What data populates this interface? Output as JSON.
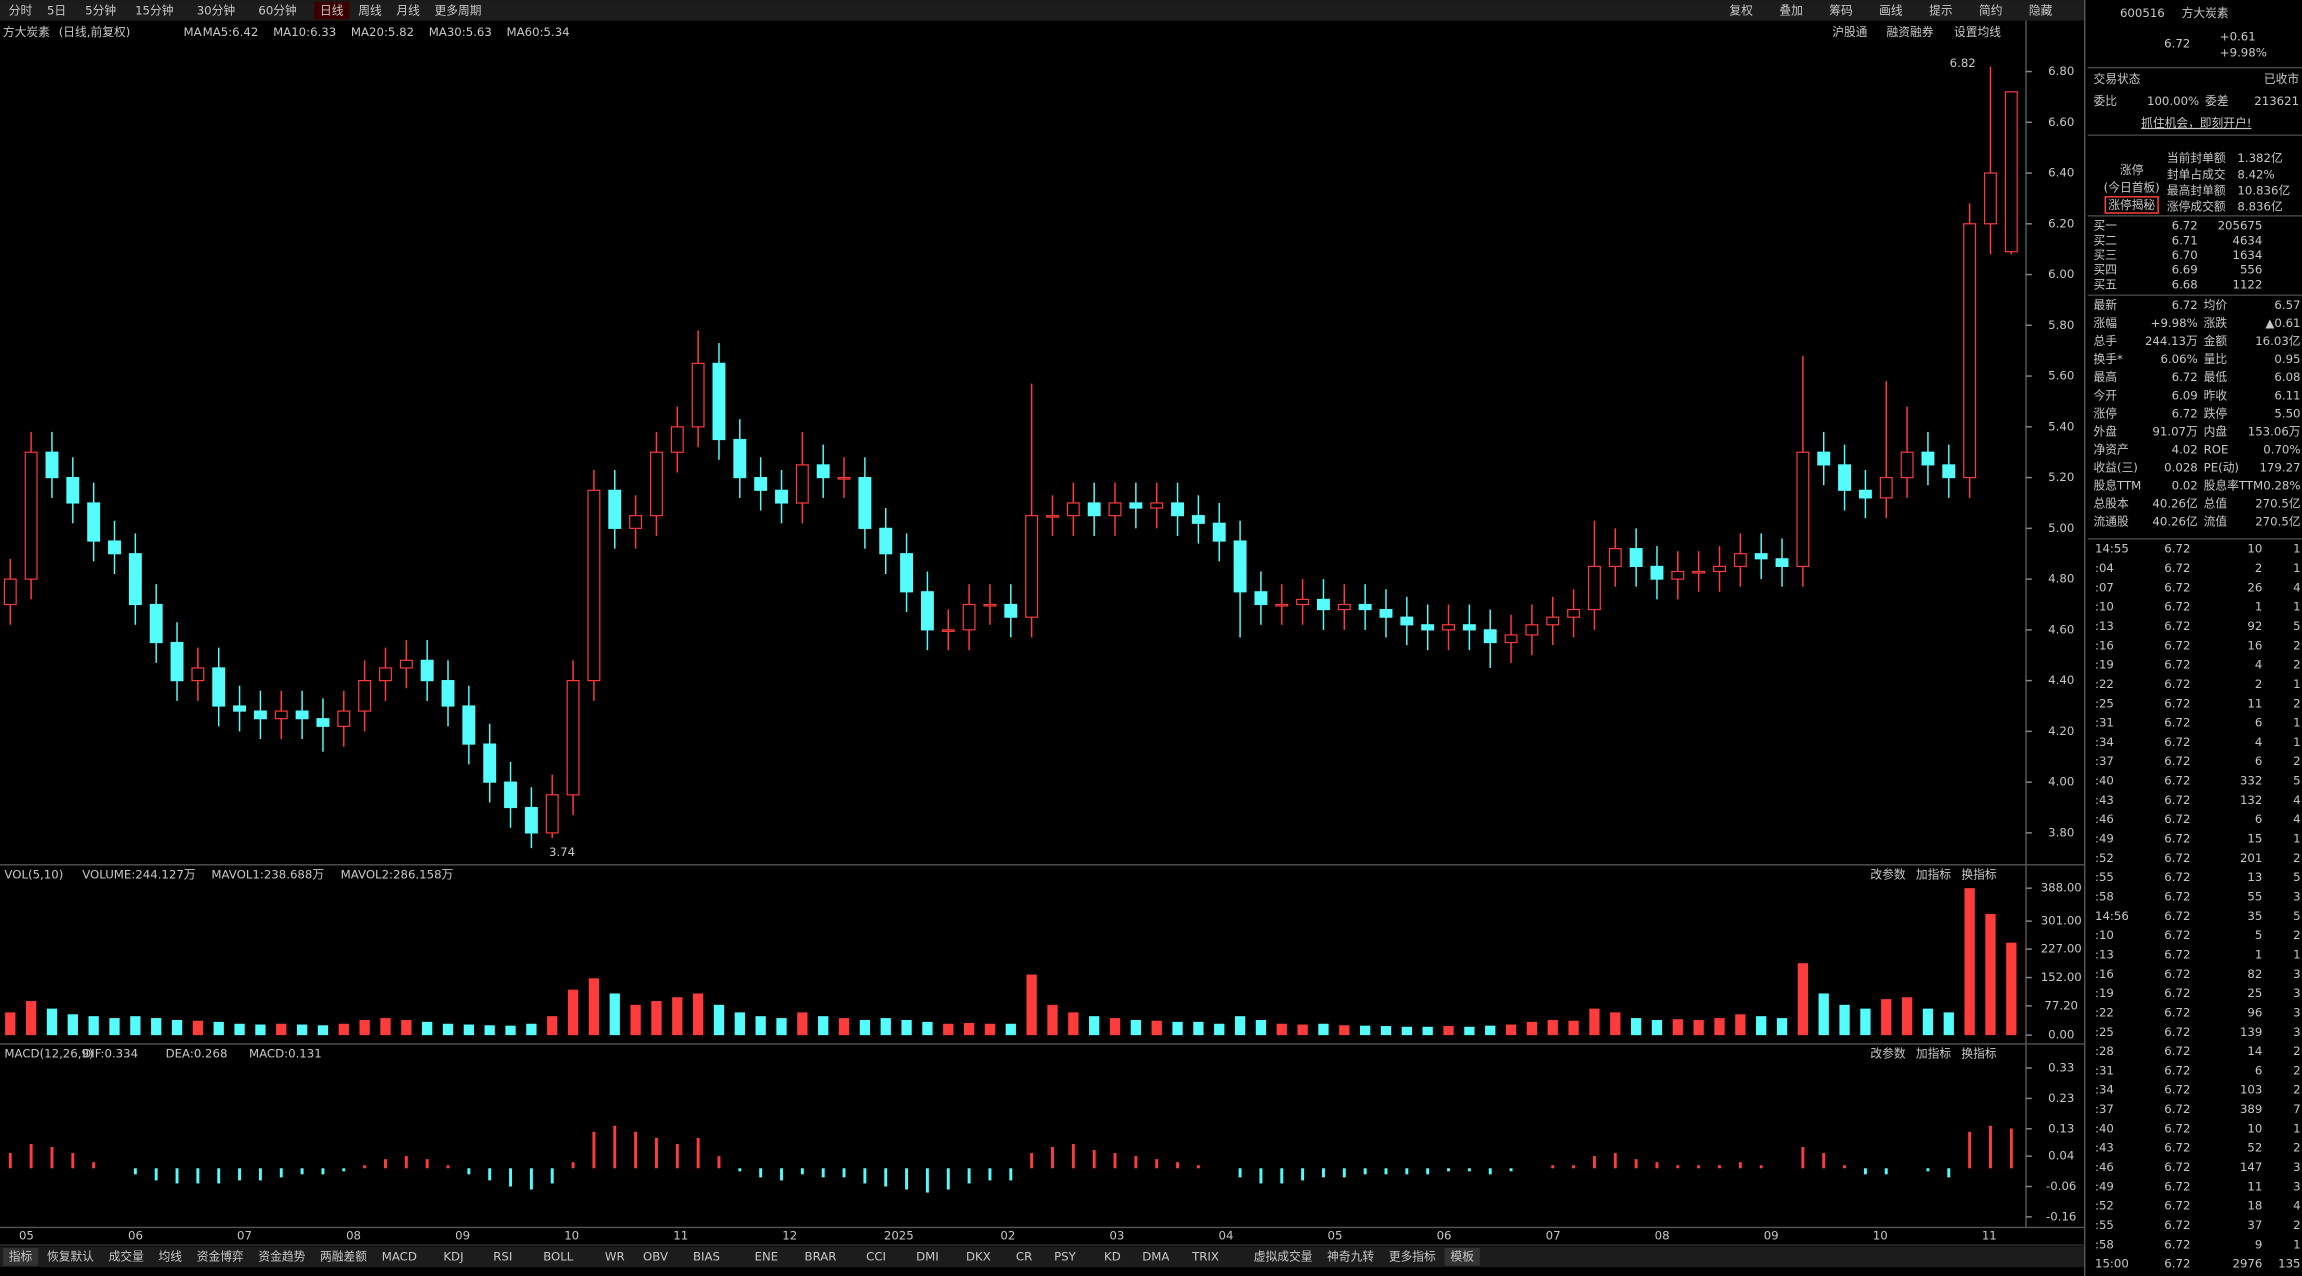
{
  "toolbar": {
    "periods": [
      "分时",
      "5日",
      "5分钟",
      "15分钟",
      "30分钟",
      "60分钟",
      "日线",
      "周线",
      "月线",
      "更多周期"
    ],
    "tools": [
      "复权",
      "叠加",
      "筹码",
      "画线",
      "提示",
      "简约",
      "隐藏"
    ]
  },
  "header": {
    "stock": "方大炭素",
    "mode": "(日线,前复权)",
    "ma_title": "MA",
    "ma": [
      {
        "label": "MA5:6.42",
        "color": "#ffffff"
      },
      {
        "label": "MA10:6.33",
        "color": "#ffff00"
      },
      {
        "label": "MA20:5.82",
        "color": "#ff33ff"
      },
      {
        "label": "MA30:5.63",
        "color": "#00ff00"
      },
      {
        "label": "MA60:5.34",
        "color": "#c0c0c0"
      }
    ],
    "links": [
      "沪股通",
      "融资融券",
      "设置均线"
    ]
  },
  "chart_data": {
    "type": "candlestick",
    "up_color": "#ff3c3c",
    "down_color": "#54fcfc",
    "ylim": [
      3.68,
      6.85
    ],
    "yticks": [
      {
        "value": 3.8,
        "label": "3.80"
      },
      {
        "value": 4.0,
        "label": "4.00"
      },
      {
        "value": 4.2,
        "label": "4.20"
      },
      {
        "value": 4.4,
        "label": "4.40"
      },
      {
        "value": 4.6,
        "label": "4.60"
      },
      {
        "value": 4.8,
        "label": "4.80"
      },
      {
        "value": 5.0,
        "label": "5.00"
      },
      {
        "value": 5.2,
        "label": "5.20"
      },
      {
        "value": 5.4,
        "label": "5.40"
      },
      {
        "value": 5.6,
        "label": "5.60"
      },
      {
        "value": 5.8,
        "label": "5.80"
      },
      {
        "value": 6.0,
        "label": "6.00"
      },
      {
        "value": 6.2,
        "label": "6.20"
      },
      {
        "value": 6.4,
        "label": "6.40"
      },
      {
        "value": 6.6,
        "label": "6.60"
      },
      {
        "value": 6.8,
        "label": "6.80"
      }
    ],
    "high_note": 6.82,
    "low_note": 3.74,
    "months": [
      "05",
      "06",
      "07",
      "08",
      "09",
      "10",
      "11",
      "12",
      "2025",
      "02",
      "03",
      "04",
      "05",
      "06",
      "07",
      "08",
      "09",
      "10",
      "11"
    ],
    "candles": [
      [
        4.7,
        4.88,
        4.62,
        4.8
      ],
      [
        4.8,
        5.38,
        4.72,
        5.3
      ],
      [
        5.3,
        5.38,
        5.12,
        5.2
      ],
      [
        5.2,
        5.28,
        5.02,
        5.1
      ],
      [
        5.1,
        5.18,
        4.87,
        4.95
      ],
      [
        4.95,
        5.03,
        4.82,
        4.9
      ],
      [
        4.9,
        4.98,
        4.62,
        4.7
      ],
      [
        4.7,
        4.78,
        4.47,
        4.55
      ],
      [
        4.55,
        4.63,
        4.32,
        4.4
      ],
      [
        4.4,
        4.53,
        4.32,
        4.45
      ],
      [
        4.45,
        4.53,
        4.22,
        4.3
      ],
      [
        4.3,
        4.38,
        4.2,
        4.28
      ],
      [
        4.28,
        4.36,
        4.17,
        4.25
      ],
      [
        4.25,
        4.36,
        4.17,
        4.28
      ],
      [
        4.28,
        4.36,
        4.17,
        4.25
      ],
      [
        4.25,
        4.33,
        4.12,
        4.22
      ],
      [
        4.22,
        4.36,
        4.14,
        4.28
      ],
      [
        4.28,
        4.48,
        4.2,
        4.4
      ],
      [
        4.4,
        4.53,
        4.32,
        4.45
      ],
      [
        4.45,
        4.56,
        4.37,
        4.48
      ],
      [
        4.48,
        4.56,
        4.32,
        4.4
      ],
      [
        4.4,
        4.48,
        4.22,
        4.3
      ],
      [
        4.3,
        4.38,
        4.07,
        4.15
      ],
      [
        4.15,
        4.23,
        3.92,
        4.0
      ],
      [
        4.0,
        4.08,
        3.82,
        3.9
      ],
      [
        3.9,
        3.98,
        3.74,
        3.8
      ],
      [
        3.8,
        4.03,
        3.78,
        3.95
      ],
      [
        3.95,
        4.48,
        3.87,
        4.4
      ],
      [
        4.4,
        5.23,
        4.32,
        5.15
      ],
      [
        5.15,
        5.23,
        4.92,
        5.0
      ],
      [
        5.0,
        5.13,
        4.92,
        5.05
      ],
      [
        5.05,
        5.38,
        4.97,
        5.3
      ],
      [
        5.3,
        5.48,
        5.22,
        5.4
      ],
      [
        5.4,
        5.78,
        5.32,
        5.65
      ],
      [
        5.65,
        5.73,
        5.27,
        5.35
      ],
      [
        5.35,
        5.43,
        5.12,
        5.2
      ],
      [
        5.2,
        5.28,
        5.07,
        5.15
      ],
      [
        5.15,
        5.23,
        5.02,
        5.1
      ],
      [
        5.1,
        5.38,
        5.02,
        5.25
      ],
      [
        5.25,
        5.33,
        5.12,
        5.2
      ],
      [
        5.2,
        5.28,
        5.12,
        5.2
      ],
      [
        5.2,
        5.28,
        4.92,
        5.0
      ],
      [
        5.0,
        5.08,
        4.82,
        4.9
      ],
      [
        4.9,
        4.98,
        4.67,
        4.75
      ],
      [
        4.75,
        4.83,
        4.52,
        4.6
      ],
      [
        4.6,
        4.68,
        4.52,
        4.6
      ],
      [
        4.6,
        4.78,
        4.52,
        4.7
      ],
      [
        4.7,
        4.78,
        4.62,
        4.7
      ],
      [
        4.7,
        4.78,
        4.57,
        4.65
      ],
      [
        4.65,
        5.57,
        4.57,
        5.05
      ],
      [
        5.05,
        5.13,
        4.97,
        5.05
      ],
      [
        5.05,
        5.18,
        4.97,
        5.1
      ],
      [
        5.1,
        5.18,
        4.97,
        5.05
      ],
      [
        5.05,
        5.18,
        4.97,
        5.1
      ],
      [
        5.1,
        5.18,
        5.0,
        5.08
      ],
      [
        5.08,
        5.18,
        5.0,
        5.1
      ],
      [
        5.1,
        5.18,
        4.97,
        5.05
      ],
      [
        5.05,
        5.13,
        4.94,
        5.02
      ],
      [
        5.02,
        5.1,
        4.87,
        4.95
      ],
      [
        4.95,
        5.03,
        4.57,
        4.75
      ],
      [
        4.75,
        4.83,
        4.62,
        4.7
      ],
      [
        4.7,
        4.78,
        4.62,
        4.7
      ],
      [
        4.7,
        4.8,
        4.62,
        4.72
      ],
      [
        4.72,
        4.8,
        4.6,
        4.68
      ],
      [
        4.68,
        4.78,
        4.6,
        4.7
      ],
      [
        4.7,
        4.78,
        4.6,
        4.68
      ],
      [
        4.68,
        4.76,
        4.57,
        4.65
      ],
      [
        4.65,
        4.73,
        4.54,
        4.62
      ],
      [
        4.62,
        4.7,
        4.52,
        4.6
      ],
      [
        4.6,
        4.7,
        4.52,
        4.62
      ],
      [
        4.62,
        4.7,
        4.52,
        4.6
      ],
      [
        4.6,
        4.68,
        4.45,
        4.55
      ],
      [
        4.55,
        4.66,
        4.47,
        4.58
      ],
      [
        4.58,
        4.7,
        4.5,
        4.62
      ],
      [
        4.62,
        4.73,
        4.54,
        4.65
      ],
      [
        4.65,
        4.76,
        4.57,
        4.68
      ],
      [
        4.68,
        5.03,
        4.6,
        4.85
      ],
      [
        4.85,
        5.0,
        4.77,
        4.92
      ],
      [
        4.92,
        5.0,
        4.77,
        4.85
      ],
      [
        4.85,
        4.93,
        4.72,
        4.8
      ],
      [
        4.8,
        4.91,
        4.72,
        4.83
      ],
      [
        4.83,
        4.91,
        4.75,
        4.83
      ],
      [
        4.83,
        4.93,
        4.75,
        4.85
      ],
      [
        4.85,
        4.98,
        4.77,
        4.9
      ],
      [
        4.9,
        4.98,
        4.8,
        4.88
      ],
      [
        4.88,
        4.96,
        4.77,
        4.85
      ],
      [
        4.85,
        5.68,
        4.77,
        5.3
      ],
      [
        5.3,
        5.38,
        5.17,
        5.25
      ],
      [
        5.25,
        5.33,
        5.07,
        5.15
      ],
      [
        5.15,
        5.23,
        5.04,
        5.12
      ],
      [
        5.12,
        5.58,
        5.04,
        5.2
      ],
      [
        5.2,
        5.48,
        5.12,
        5.3
      ],
      [
        5.3,
        5.38,
        5.17,
        5.25
      ],
      [
        5.25,
        5.33,
        5.12,
        5.2
      ],
      [
        5.2,
        6.28,
        5.12,
        6.2
      ],
      [
        6.2,
        6.82,
        6.08,
        6.4
      ],
      [
        6.09,
        6.72,
        6.08,
        6.72
      ]
    ],
    "volume": {
      "title": "VOL(5,10)",
      "readouts": [
        "VOLUME:244.127万",
        "MAVOL1:238.688万",
        "MAVOL2:286.158万"
      ],
      "ylim": [
        0,
        407
      ],
      "yticks": [
        {
          "value": 0,
          "label": "0.00"
        },
        {
          "value": 77.2,
          "label": "77.20"
        },
        {
          "value": 152,
          "label": "152.00"
        },
        {
          "value": 227,
          "label": "227.00"
        },
        {
          "value": 301,
          "label": "301.00"
        },
        {
          "value": 388,
          "label": "388.00"
        }
      ],
      "values": [
        60,
        90,
        70,
        55,
        50,
        45,
        50,
        45,
        40,
        38,
        35,
        30,
        28,
        30,
        28,
        26,
        30,
        40,
        45,
        40,
        35,
        30,
        28,
        26,
        25,
        30,
        50,
        120,
        150,
        110,
        80,
        90,
        100,
        110,
        80,
        60,
        50,
        45,
        60,
        50,
        45,
        40,
        45,
        40,
        35,
        30,
        32,
        30,
        30,
        160,
        80,
        60,
        50,
        45,
        40,
        38,
        35,
        35,
        30,
        50,
        40,
        30,
        28,
        30,
        26,
        25,
        24,
        22,
        22,
        24,
        22,
        25,
        28,
        35,
        40,
        38,
        70,
        60,
        45,
        40,
        42,
        40,
        45,
        55,
        50,
        45,
        190,
        110,
        80,
        70,
        95,
        100,
        70,
        60,
        388,
        320,
        244.127
      ]
    },
    "macd": {
      "title": "MACD(12,26,9)",
      "readouts": [
        "DIF:0.334",
        "DEA:0.268",
        "MACD:0.131"
      ],
      "ylim": [
        -0.19,
        0.39
      ],
      "yticks": [
        -0.16,
        -0.06,
        0.04,
        0.13,
        0.23,
        0.33
      ],
      "values": [
        0.05,
        0.08,
        0.07,
        0.05,
        0.02,
        0,
        -0.02,
        -0.04,
        -0.05,
        -0.05,
        -0.05,
        -0.04,
        -0.04,
        -0.03,
        -0.02,
        -0.02,
        -0.01,
        0.01,
        0.03,
        0.04,
        0.03,
        0.01,
        -0.02,
        -0.04,
        -0.06,
        -0.07,
        -0.05,
        0.02,
        0.12,
        0.14,
        0.12,
        0.1,
        0.08,
        0.1,
        0.04,
        -0.01,
        -0.03,
        -0.04,
        -0.02,
        -0.03,
        -0.03,
        -0.05,
        -0.06,
        -0.07,
        -0.08,
        -0.07,
        -0.05,
        -0.04,
        -0.04,
        0.05,
        0.07,
        0.08,
        0.06,
        0.05,
        0.04,
        0.03,
        0.02,
        0.01,
        0,
        -0.03,
        -0.05,
        -0.05,
        -0.04,
        -0.03,
        -0.03,
        -0.02,
        -0.02,
        -0.02,
        -0.02,
        -0.01,
        -0.01,
        -0.02,
        -0.01,
        0,
        0.01,
        0.01,
        0.04,
        0.05,
        0.03,
        0.02,
        0.01,
        0.01,
        0.01,
        0.02,
        0.01,
        0,
        0.07,
        0.05,
        0.01,
        -0.02,
        -0.02,
        0,
        -0.01,
        -0.03,
        0.12,
        0.14,
        0.131
      ]
    }
  },
  "panel_buttons": [
    "改参数",
    "加指标",
    "换指标"
  ],
  "bottom_tabs": [
    "指标",
    "恢复默认",
    "成交量",
    "均线",
    "资金博弈",
    "资金趋势",
    "两融差额",
    "MACD",
    "KDJ",
    "RSI",
    "BOLL",
    "WR",
    "OBV",
    "BIAS",
    "ENE",
    "BRAR",
    "CCI",
    "DMI",
    "DKX",
    "CR",
    "PSY",
    "KD",
    "DMA",
    "TRIX",
    "虚拟成交量",
    "神奇九转",
    "更多指标",
    "模板"
  ],
  "quote": {
    "code": "600516",
    "name": "方大炭素",
    "price": "6.72",
    "change": "+0.61",
    "pct": "+9.98%",
    "status": [
      "交易状态",
      "已收市"
    ],
    "ratio": [
      "委比",
      "100.00%",
      "委差",
      "213621"
    ],
    "ad": "抓住机会，即刻开户!",
    "limit": {
      "title": "涨停",
      "sub": "(今日首板)",
      "button": "涨停揭秘",
      "rows": [
        [
          "当前封单额",
          "1.382亿"
        ],
        [
          "封单占成交",
          "8.42%"
        ],
        [
          "最高封单额",
          "10.836亿"
        ],
        [
          "涨停成交额",
          "8.836亿"
        ]
      ]
    },
    "book": [
      [
        "买一",
        "6.72",
        "205675"
      ],
      [
        "买二",
        "6.71",
        "4634"
      ],
      [
        "买三",
        "6.70",
        "1634"
      ],
      [
        "买四",
        "6.69",
        "556"
      ],
      [
        "买五",
        "6.68",
        "1122"
      ]
    ],
    "stats": [
      [
        "最新",
        "6.72",
        "均价",
        "6.57"
      ],
      [
        "涨幅",
        "+9.98%",
        "涨跌",
        "▲0.61"
      ],
      [
        "总手",
        "244.13万",
        "金额",
        "16.03亿"
      ],
      [
        "换手*",
        "6.06%",
        "量比",
        "0.95"
      ],
      [
        "最高",
        "6.72",
        "最低",
        "6.08"
      ],
      [
        "今开",
        "6.09",
        "昨收",
        "6.11"
      ],
      [
        "涨停",
        "6.72",
        "跌停",
        "5.50"
      ],
      [
        "外盘",
        "91.07万",
        "内盘",
        "153.06万"
      ],
      [
        "净资产",
        "4.02",
        "ROE",
        "0.70%"
      ],
      [
        "收益(三)",
        "0.028",
        "PE(动)",
        "179.27"
      ],
      [
        "股息TTM",
        "0.02",
        "股息率TTM",
        "0.28%"
      ],
      [
        "总股本",
        "40.26亿",
        "总值",
        "270.5亿"
      ],
      [
        "流通股",
        "40.26亿",
        "流值",
        "270.5亿"
      ]
    ],
    "trades": [
      [
        "14:55",
        "6.72",
        "10",
        "1"
      ],
      [
        ":04",
        "6.72",
        "2",
        "1"
      ],
      [
        ":07",
        "6.72",
        "26",
        "4"
      ],
      [
        ":10",
        "6.72",
        "1",
        "1"
      ],
      [
        ":13",
        "6.72",
        "92",
        "5"
      ],
      [
        ":16",
        "6.72",
        "16",
        "2"
      ],
      [
        ":19",
        "6.72",
        "4",
        "2"
      ],
      [
        ":22",
        "6.72",
        "2",
        "1"
      ],
      [
        ":25",
        "6.72",
        "11",
        "2"
      ],
      [
        ":31",
        "6.72",
        "6",
        "1"
      ],
      [
        ":34",
        "6.72",
        "4",
        "1"
      ],
      [
        ":37",
        "6.72",
        "6",
        "2"
      ],
      [
        ":40",
        "6.72",
        "332",
        "5"
      ],
      [
        ":43",
        "6.72",
        "132",
        "4"
      ],
      [
        ":46",
        "6.72",
        "6",
        "4"
      ],
      [
        ":49",
        "6.72",
        "15",
        "1"
      ],
      [
        ":52",
        "6.72",
        "201",
        "2"
      ],
      [
        ":55",
        "6.72",
        "13",
        "5"
      ],
      [
        ":58",
        "6.72",
        "55",
        "3"
      ],
      [
        "14:56",
        "6.72",
        "35",
        "5"
      ],
      [
        ":10",
        "6.72",
        "5",
        "2"
      ],
      [
        ":13",
        "6.72",
        "1",
        "1"
      ],
      [
        ":16",
        "6.72",
        "82",
        "3"
      ],
      [
        ":19",
        "6.72",
        "25",
        "3"
      ],
      [
        ":22",
        "6.72",
        "96",
        "3"
      ],
      [
        ":25",
        "6.72",
        "139",
        "3"
      ],
      [
        ":28",
        "6.72",
        "14",
        "2"
      ],
      [
        ":31",
        "6.72",
        "6",
        "2"
      ],
      [
        ":34",
        "6.72",
        "103",
        "2"
      ],
      [
        ":37",
        "6.72",
        "389",
        "7"
      ],
      [
        ":40",
        "6.72",
        "10",
        "1"
      ],
      [
        ":43",
        "6.72",
        "52",
        "2"
      ],
      [
        ":46",
        "6.72",
        "147",
        "3"
      ],
      [
        ":49",
        "6.72",
        "11",
        "3"
      ],
      [
        ":52",
        "6.72",
        "18",
        "4"
      ],
      [
        ":55",
        "6.72",
        "37",
        "2"
      ],
      [
        ":58",
        "6.72",
        "9",
        "1"
      ],
      [
        "15:00",
        "6.72",
        "2976",
        "135"
      ]
    ]
  }
}
